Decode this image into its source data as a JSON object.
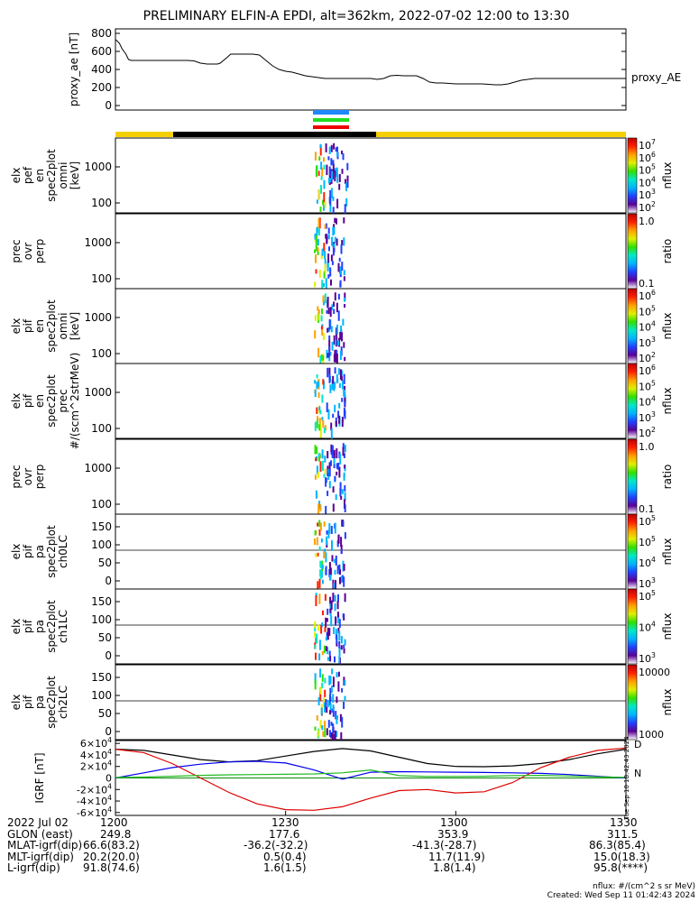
{
  "title": "PRELIMINARY ELFIN-A EPDI, alt=362km, 2022-07-02 12:00 to 13:30",
  "colors": {
    "sunlit": "#f5d000",
    "shadow": "#000000",
    "bar_blue": "#1e88ff",
    "bar_green": "#22dd22",
    "bar_red": "#ee0000"
  },
  "chart_data": [
    {
      "id": "proxy_ae",
      "type": "line",
      "ylabel": "proxy_ae [nT]",
      "yticks": [
        "800",
        "600",
        "400",
        "200",
        "0"
      ],
      "ylim": [
        -50,
        850
      ],
      "legend": "proxy_AE",
      "x_minutes": [
        0,
        1,
        3,
        5,
        8,
        10,
        12,
        15,
        20,
        25,
        30,
        35,
        40,
        45,
        50,
        55,
        60,
        65,
        70,
        75,
        78,
        80,
        85,
        88,
        90,
        95,
        100,
        105,
        110,
        115,
        120,
        125,
        130,
        135,
        140,
        145,
        150,
        155,
        160,
        165,
        170,
        175,
        180,
        185,
        190,
        195,
        200,
        205,
        210,
        215,
        220,
        225,
        230,
        235,
        240,
        245,
        250,
        255,
        260,
        265,
        270,
        275,
        280,
        285,
        290,
        295,
        300,
        305,
        310,
        315,
        320,
        325,
        330,
        335,
        340,
        345,
        350,
        355,
        360,
        365,
        370,
        375,
        380,
        385,
        390
      ],
      "values": [
        730,
        720,
        690,
        630,
        570,
        510,
        500,
        500,
        500,
        500,
        500,
        500,
        500,
        500,
        500,
        500,
        495,
        470,
        460,
        460,
        460,
        470,
        530,
        570,
        570,
        570,
        570,
        570,
        560,
        500,
        440,
        400,
        380,
        370,
        350,
        330,
        320,
        310,
        300,
        300,
        300,
        300,
        300,
        300,
        300,
        300,
        290,
        300,
        330,
        335,
        330,
        330,
        330,
        300,
        260,
        250,
        250,
        245,
        240,
        240,
        240,
        240,
        240,
        235,
        230,
        230,
        240,
        260,
        280,
        290,
        300,
        300,
        300,
        300,
        300,
        300,
        300,
        300,
        300,
        300,
        300,
        300,
        300,
        300,
        300
      ]
    },
    {
      "id": "elx_pef_en_spec2plot_omni",
      "type": "heatmap",
      "ylabel": "elx pef en spec2plot omni [keV]",
      "yticks": [
        "1000",
        "100"
      ],
      "colorbar": {
        "label": "nflux",
        "ticks": [
          "10^7",
          "10^6",
          "10^5",
          "10^4",
          "10^3",
          "10^2"
        ]
      }
    },
    {
      "id": "prec_ovr_perp_1",
      "type": "heatmap",
      "ylabel": "prec ovr perp",
      "yticks": [
        "1000",
        "100"
      ],
      "colorbar": {
        "label": "ratio",
        "ticks": [
          "1.0",
          "0.1"
        ]
      }
    },
    {
      "id": "elx_pif_en_spec2plot_omni",
      "type": "heatmap",
      "ylabel": "elx pif en spec2plot omni [keV]",
      "yticks": [
        "1000",
        "100"
      ],
      "colorbar": {
        "label": "nflux",
        "ticks": [
          "10^6",
          "10^5",
          "10^4",
          "10^3",
          "10^2"
        ]
      }
    },
    {
      "id": "elx_pif_en_spec2plot_prec",
      "type": "heatmap",
      "ylabel": "elx pif en spec2plot prec #/(scm^2strMeV)",
      "yticks": [
        "1000",
        "100"
      ],
      "colorbar": {
        "label": "nflux",
        "ticks": [
          "10^6",
          "10^5",
          "10^4",
          "10^3",
          "10^2"
        ]
      }
    },
    {
      "id": "prec_ovr_perp_2",
      "type": "heatmap",
      "ylabel": "prec ovr perp",
      "yticks": [
        "1000",
        "100"
      ],
      "colorbar": {
        "label": "ratio",
        "ticks": [
          "1.0",
          "0.1"
        ]
      }
    },
    {
      "id": "elx_pif_pa_spec2plot_ch0LC",
      "type": "heatmap",
      "ylabel": "elx pif pa spec2plot ch0LC",
      "yticks": [
        "150",
        "100",
        "50",
        "0"
      ],
      "colorbar": {
        "label": "nflux",
        "ticks": [
          "10^5",
          "10^5",
          "10^4",
          "10^3"
        ]
      }
    },
    {
      "id": "elx_pif_pa_spec2plot_ch1LC",
      "type": "heatmap",
      "ylabel": "elx pif pa spec2plot ch1LC",
      "yticks": [
        "150",
        "100",
        "50",
        "0"
      ],
      "colorbar": {
        "label": "nflux",
        "ticks": [
          "10^5",
          "10^4",
          "10^3"
        ]
      }
    },
    {
      "id": "elx_pif_pa_spec2plot_ch2LC",
      "type": "heatmap",
      "ylabel": "elx pif pa spec2plot ch2LC",
      "yticks": [
        "150",
        "100",
        "50",
        "0"
      ],
      "colorbar": {
        "label": "nflux",
        "ticks": [
          "10000",
          "1000"
        ]
      }
    },
    {
      "id": "igrf",
      "type": "line",
      "ylabel": "IGRF [nT]",
      "yticks": [
        "6x10^4",
        "4x10^4",
        "2x10^4",
        "0",
        "-2x10^4",
        "-4x10^4",
        "-6x10^4"
      ],
      "ylim": [
        -65000,
        65000
      ],
      "legend": [
        "D",
        "N"
      ],
      "x_minutes": [
        0,
        5,
        10,
        15,
        20,
        25,
        30,
        35,
        40,
        45,
        50,
        55,
        60,
        65,
        70,
        75,
        80,
        85,
        90
      ],
      "series": [
        {
          "color": "#000000",
          "values": [
            50000,
            48000,
            40000,
            32000,
            28000,
            30000,
            38000,
            46000,
            51000,
            47000,
            36000,
            25000,
            20000,
            19500,
            21000,
            25000,
            32000,
            42000,
            50000
          ]
        },
        {
          "color": "#0000ee",
          "values": [
            0,
            9000,
            18000,
            24000,
            28000,
            29000,
            26000,
            14000,
            -2000,
            10000,
            11000,
            10500,
            10000,
            9500,
            9000,
            8000,
            6000,
            3000,
            0
          ]
        },
        {
          "color": "#dd0000",
          "values": [
            50000,
            44000,
            25000,
            0,
            -25000,
            -45000,
            -55000,
            -56000,
            -50000,
            -35000,
            -22000,
            -20000,
            -26000,
            -24000,
            -8000,
            18000,
            36000,
            48000,
            52000
          ]
        },
        {
          "color": "#22bb22",
          "values": [
            1000,
            1500,
            3000,
            4500,
            5500,
            6000,
            6500,
            7000,
            9000,
            14000,
            4000,
            2500,
            2500,
            3000,
            4000,
            4500,
            3500,
            2000,
            1000
          ]
        }
      ]
    }
  ],
  "spec_colorbar_stops": [
    "#ffffff",
    "#5a0096",
    "#2040ff",
    "#00b4ff",
    "#00e8c8",
    "#30e000",
    "#e0f000",
    "#ffa000",
    "#ff2000",
    "#c00000"
  ],
  "side_text": "Tue Sep 10 18:42:43 2024",
  "footer": {
    "rows": [
      [
        "2022 Jul 02",
        "1200",
        "1230",
        "1300",
        "1330"
      ],
      [
        "GLON (east)",
        "249.8",
        "177.6",
        "353.9",
        "311.5"
      ],
      [
        "MLAT-igrf(dip)",
        "66.6(83.2)",
        "-36.2(-32.2)",
        "-41.3(-28.7)",
        "86.3(85.4)"
      ],
      [
        "MLT-igrf(dip)",
        "20.2(20.0)",
        "0.5(0.4)",
        "11.7(11.9)",
        "15.0(18.3)"
      ],
      [
        "L-igrf(dip)",
        "91.8(74.6)",
        "1.6(1.5)",
        "1.8(1.4)",
        "95.8(****)"
      ]
    ],
    "credit_1": "nflux: #/(cm^2 s sr MeV)",
    "credit_2": "Created: Wed Sep 11 01:42:43 2024"
  }
}
